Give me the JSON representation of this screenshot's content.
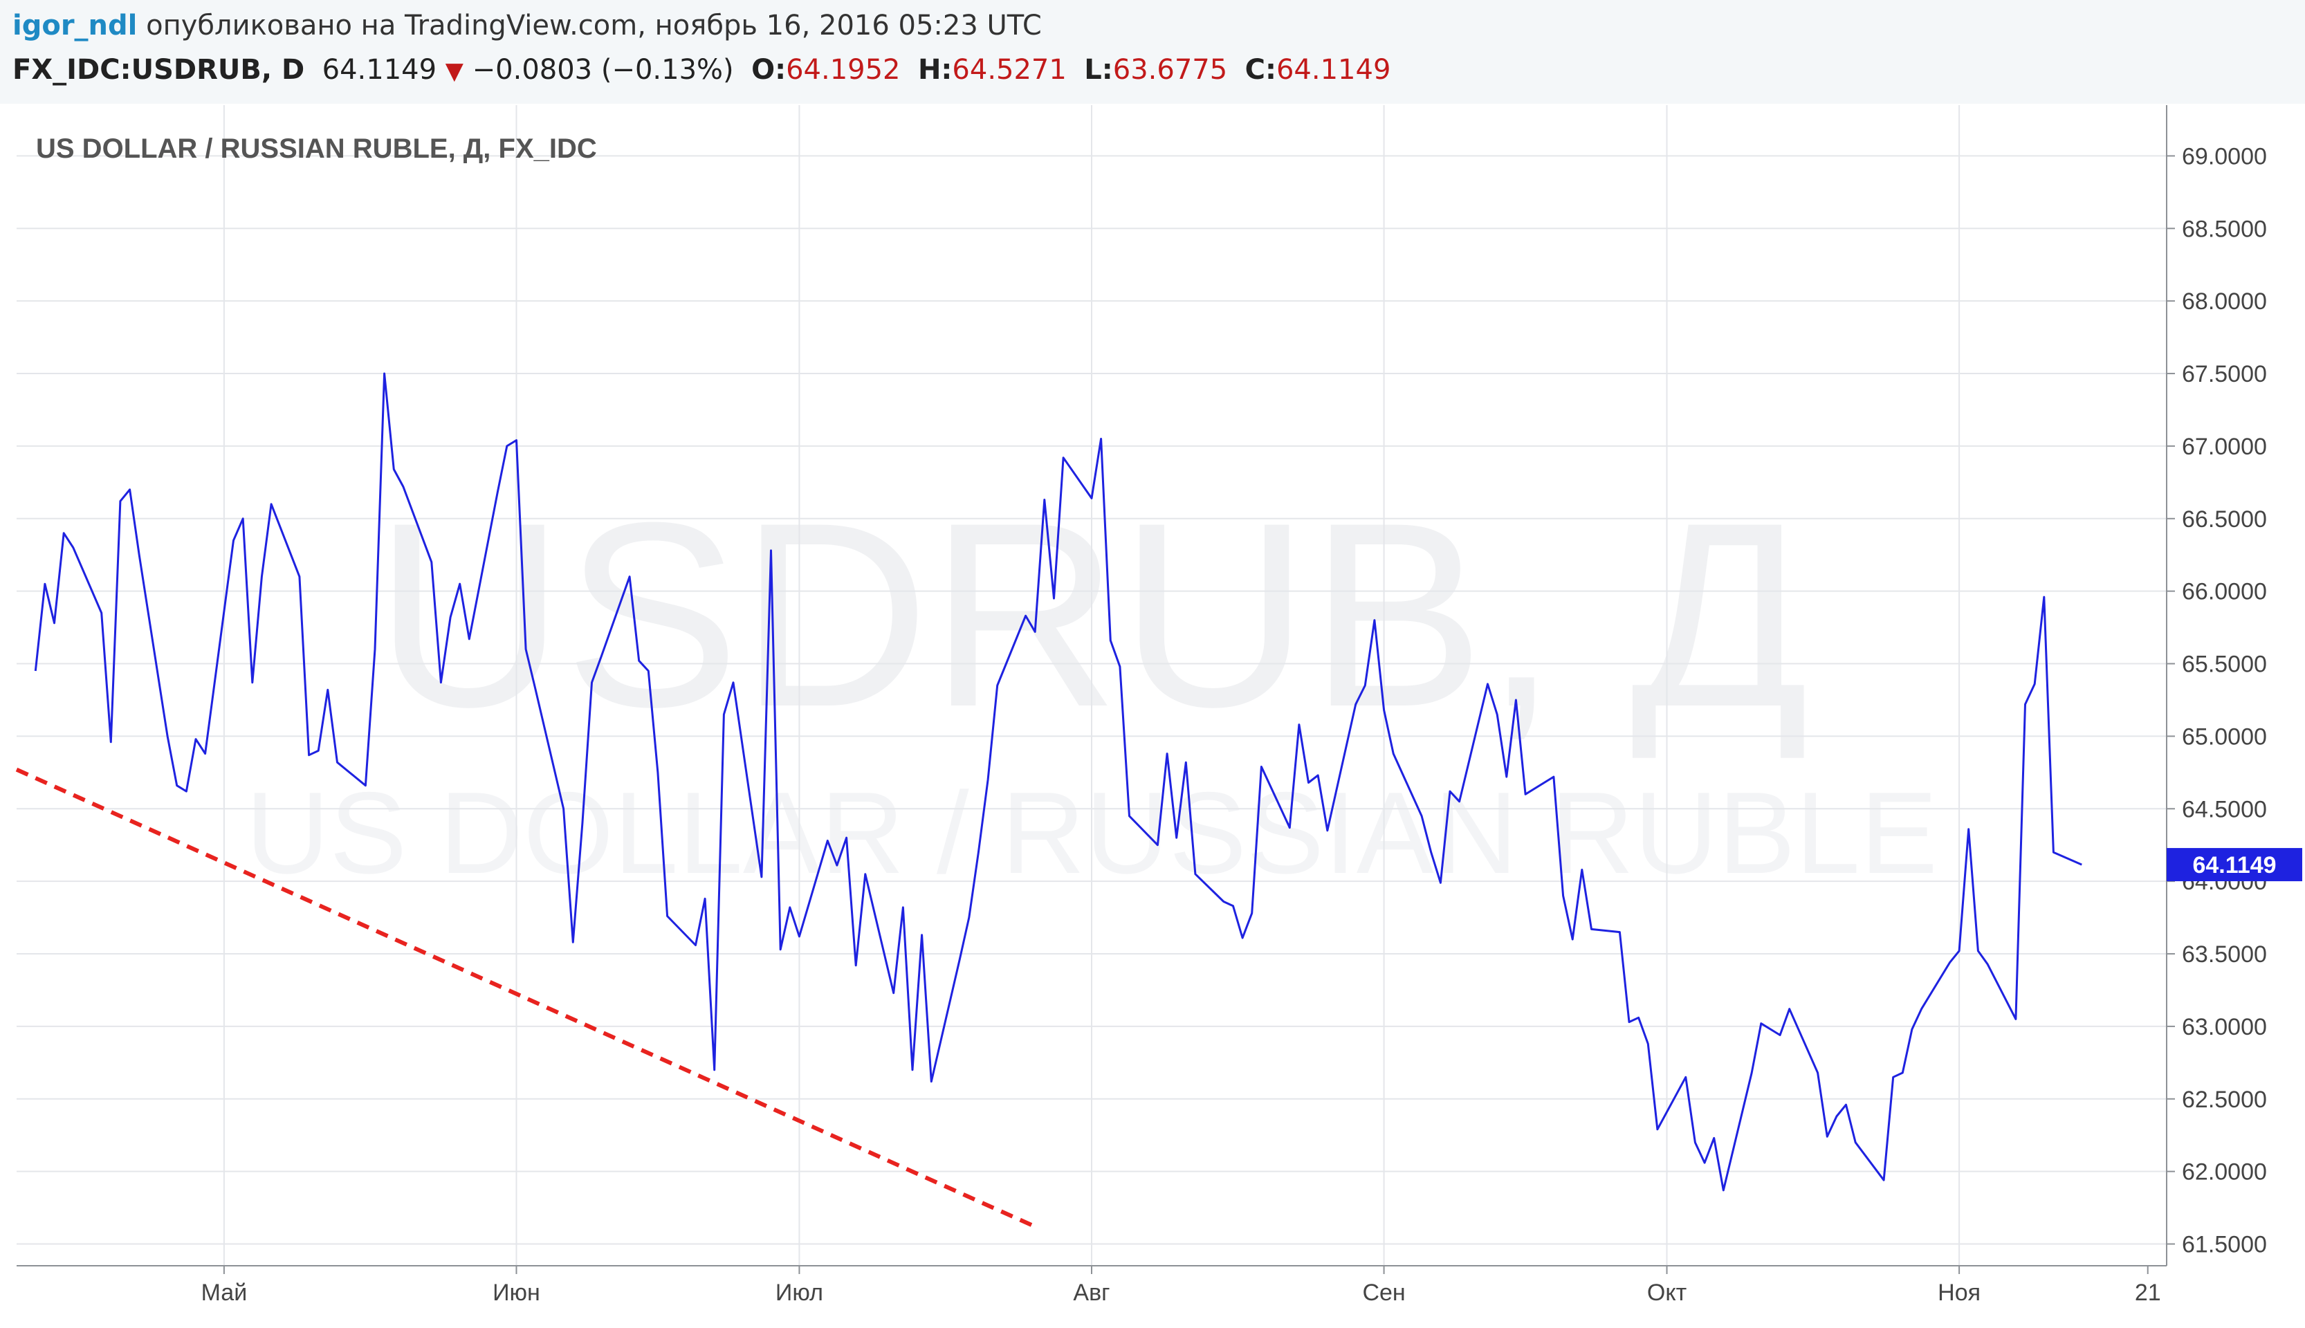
{
  "header": {
    "author": "igor_ndl",
    "published": "опубликовано на TradingView.com, ноябрь 16, 2016 05:23 UTC",
    "symbol": "FX_IDC:USDRUB, D",
    "last": "64.1149",
    "change": "−0.0803 (−0.13%)",
    "open_label": "O:",
    "open": "64.1952",
    "high_label": "H:",
    "high": "64.5271",
    "low_label": "L:",
    "low": "63.6775",
    "close_label": "C:",
    "close": "64.1149",
    "change_direction_icon": "down-triangle-icon"
  },
  "colors": {
    "line": "#1e22e0",
    "trendline": "#e8231f",
    "price_tag": "#1e22e0",
    "grid": "#e4e6ea",
    "down": "#c21a1a"
  },
  "chart_data": {
    "type": "line",
    "title": "US DOLLAR / RUSSIAN RUBLE, Д, FX_IDC",
    "watermark": [
      "USDRUB, Д",
      "US DOLLAR / RUSSIAN RUBLE"
    ],
    "xlabel": "",
    "ylabel": "",
    "x_tick_labels": [
      "Май",
      "Июн",
      "Июл",
      "Авг",
      "Сен",
      "Окт",
      "Ноя",
      "21"
    ],
    "x_ticks_dates": [
      "2016-05-01",
      "2016-06-01",
      "2016-07-01",
      "2016-08-01",
      "2016-09-01",
      "2016-10-01",
      "2016-11-01",
      "2016-11-21"
    ],
    "y_tick_labels": [
      "61.5000",
      "62.0000",
      "62.5000",
      "63.0000",
      "63.5000",
      "64.0000",
      "64.5000",
      "65.0000",
      "65.5000",
      "66.0000",
      "66.5000",
      "67.0000",
      "67.5000",
      "68.0000",
      "68.5000",
      "69.0000"
    ],
    "ylim": [
      61.35,
      69.35
    ],
    "xlim": [
      "2016-04-09",
      "2016-11-23"
    ],
    "grid": true,
    "last_price_label": "64.1149",
    "series": [
      {
        "values": [
          [
            "2016-04-11",
            65.45
          ],
          [
            "2016-04-12",
            66.05
          ],
          [
            "2016-04-13",
            65.78
          ],
          [
            "2016-04-14",
            66.4
          ],
          [
            "2016-04-15",
            66.3
          ],
          [
            "2016-04-18",
            65.85
          ],
          [
            "2016-04-19",
            64.96
          ],
          [
            "2016-04-20",
            66.62
          ],
          [
            "2016-04-21",
            66.7
          ],
          [
            "2016-04-22",
            66.25
          ],
          [
            "2016-04-25",
            65.0
          ],
          [
            "2016-04-26",
            64.66
          ],
          [
            "2016-04-27",
            64.62
          ],
          [
            "2016-04-28",
            64.98
          ],
          [
            "2016-04-29",
            64.88
          ],
          [
            "2016-05-02",
            66.35
          ],
          [
            "2016-05-03",
            66.5
          ],
          [
            "2016-05-04",
            65.37
          ],
          [
            "2016-05-05",
            66.1
          ],
          [
            "2016-05-06",
            66.6
          ],
          [
            "2016-05-09",
            66.1
          ],
          [
            "2016-05-10",
            64.87
          ],
          [
            "2016-05-11",
            64.9
          ],
          [
            "2016-05-12",
            65.32
          ],
          [
            "2016-05-13",
            64.82
          ],
          [
            "2016-05-16",
            64.66
          ],
          [
            "2016-05-17",
            65.6
          ],
          [
            "2016-05-18",
            67.5
          ],
          [
            "2016-05-19",
            66.84
          ],
          [
            "2016-05-20",
            66.72
          ],
          [
            "2016-05-23",
            66.2
          ],
          [
            "2016-05-24",
            65.37
          ],
          [
            "2016-05-25",
            65.82
          ],
          [
            "2016-05-26",
            66.05
          ],
          [
            "2016-05-27",
            65.67
          ],
          [
            "2016-05-30",
            66.68
          ],
          [
            "2016-05-31",
            67.0
          ],
          [
            "2016-06-01",
            67.04
          ],
          [
            "2016-06-02",
            65.6
          ],
          [
            "2016-06-03",
            65.33
          ],
          [
            "2016-06-06",
            64.5
          ],
          [
            "2016-06-07",
            63.58
          ],
          [
            "2016-06-08",
            64.4
          ],
          [
            "2016-06-09",
            65.37
          ],
          [
            "2016-06-10",
            65.55
          ],
          [
            "2016-06-13",
            66.1
          ],
          [
            "2016-06-14",
            65.52
          ],
          [
            "2016-06-15",
            65.45
          ],
          [
            "2016-06-16",
            64.75
          ],
          [
            "2016-06-17",
            63.76
          ],
          [
            "2016-06-20",
            63.56
          ],
          [
            "2016-06-21",
            63.88
          ],
          [
            "2016-06-22",
            62.7
          ],
          [
            "2016-06-23",
            65.15
          ],
          [
            "2016-06-24",
            65.37
          ],
          [
            "2016-06-27",
            64.03
          ],
          [
            "2016-06-28",
            66.28
          ],
          [
            "2016-06-29",
            63.53
          ],
          [
            "2016-06-30",
            63.82
          ],
          [
            "2016-07-01",
            63.62
          ],
          [
            "2016-07-04",
            64.28
          ],
          [
            "2016-07-05",
            64.11
          ],
          [
            "2016-07-06",
            64.3
          ],
          [
            "2016-07-07",
            63.42
          ],
          [
            "2016-07-08",
            64.05
          ],
          [
            "2016-07-11",
            63.23
          ],
          [
            "2016-07-12",
            63.82
          ],
          [
            "2016-07-13",
            62.7
          ],
          [
            "2016-07-14",
            63.63
          ],
          [
            "2016-07-15",
            62.62
          ],
          [
            "2016-07-18",
            63.46
          ],
          [
            "2016-07-19",
            63.75
          ],
          [
            "2016-07-20",
            64.2
          ],
          [
            "2016-07-21",
            64.7
          ],
          [
            "2016-07-22",
            65.35
          ],
          [
            "2016-07-25",
            65.83
          ],
          [
            "2016-07-26",
            65.72
          ],
          [
            "2016-07-27",
            66.63
          ],
          [
            "2016-07-28",
            65.95
          ],
          [
            "2016-07-29",
            66.92
          ],
          [
            "2016-08-01",
            66.64
          ],
          [
            "2016-08-02",
            67.05
          ],
          [
            "2016-08-03",
            65.66
          ],
          [
            "2016-08-04",
            65.48
          ],
          [
            "2016-08-05",
            64.45
          ],
          [
            "2016-08-08",
            64.25
          ],
          [
            "2016-08-09",
            64.88
          ],
          [
            "2016-08-10",
            64.3
          ],
          [
            "2016-08-11",
            64.82
          ],
          [
            "2016-08-12",
            64.05
          ],
          [
            "2016-08-15",
            63.86
          ],
          [
            "2016-08-16",
            63.83
          ],
          [
            "2016-08-17",
            63.61
          ],
          [
            "2016-08-18",
            63.78
          ],
          [
            "2016-08-19",
            64.79
          ],
          [
            "2016-08-22",
            64.37
          ],
          [
            "2016-08-23",
            65.08
          ],
          [
            "2016-08-24",
            64.68
          ],
          [
            "2016-08-25",
            64.73
          ],
          [
            "2016-08-26",
            64.35
          ],
          [
            "2016-08-29",
            65.22
          ],
          [
            "2016-08-30",
            65.35
          ],
          [
            "2016-08-31",
            65.8
          ],
          [
            "2016-09-01",
            65.18
          ],
          [
            "2016-09-02",
            64.88
          ],
          [
            "2016-09-05",
            64.45
          ],
          [
            "2016-09-06",
            64.2
          ],
          [
            "2016-09-07",
            63.99
          ],
          [
            "2016-09-08",
            64.62
          ],
          [
            "2016-09-09",
            64.55
          ],
          [
            "2016-09-12",
            65.36
          ],
          [
            "2016-09-13",
            65.15
          ],
          [
            "2016-09-14",
            64.72
          ],
          [
            "2016-09-15",
            65.25
          ],
          [
            "2016-09-16",
            64.6
          ],
          [
            "2016-09-19",
            64.72
          ],
          [
            "2016-09-20",
            63.9
          ],
          [
            "2016-09-21",
            63.6
          ],
          [
            "2016-09-22",
            64.08
          ],
          [
            "2016-09-23",
            63.67
          ],
          [
            "2016-09-26",
            63.65
          ],
          [
            "2016-09-27",
            63.03
          ],
          [
            "2016-09-28",
            63.06
          ],
          [
            "2016-09-29",
            62.88
          ],
          [
            "2016-09-30",
            62.29
          ],
          [
            "2016-10-03",
            62.65
          ],
          [
            "2016-10-04",
            62.2
          ],
          [
            "2016-10-05",
            62.06
          ],
          [
            "2016-10-06",
            62.23
          ],
          [
            "2016-10-07",
            61.87
          ],
          [
            "2016-10-10",
            62.68
          ],
          [
            "2016-10-11",
            63.02
          ],
          [
            "2016-10-12",
            62.98
          ],
          [
            "2016-10-13",
            62.94
          ],
          [
            "2016-10-14",
            63.12
          ],
          [
            "2016-10-17",
            62.68
          ],
          [
            "2016-10-18",
            62.24
          ],
          [
            "2016-10-19",
            62.38
          ],
          [
            "2016-10-20",
            62.46
          ],
          [
            "2016-10-21",
            62.2
          ],
          [
            "2016-10-24",
            61.94
          ],
          [
            "2016-10-25",
            62.65
          ],
          [
            "2016-10-26",
            62.68
          ],
          [
            "2016-10-27",
            62.98
          ],
          [
            "2016-10-28",
            63.12
          ],
          [
            "2016-10-31",
            63.44
          ],
          [
            "2016-11-01",
            63.52
          ],
          [
            "2016-11-02",
            64.36
          ],
          [
            "2016-11-03",
            63.52
          ],
          [
            "2016-11-04",
            63.43
          ],
          [
            "2016-11-07",
            63.05
          ],
          [
            "2016-11-08",
            65.22
          ],
          [
            "2016-11-09",
            65.36
          ],
          [
            "2016-11-10",
            65.96
          ],
          [
            "2016-11-11",
            64.2
          ],
          [
            "2016-11-14",
            64.1149
          ]
        ]
      }
    ],
    "drawings": [
      {
        "type": "trendline",
        "style": "dashed",
        "from": [
          "2016-04-09",
          64.77
        ],
        "to": [
          "2016-07-26",
          61.62
        ]
      }
    ]
  }
}
